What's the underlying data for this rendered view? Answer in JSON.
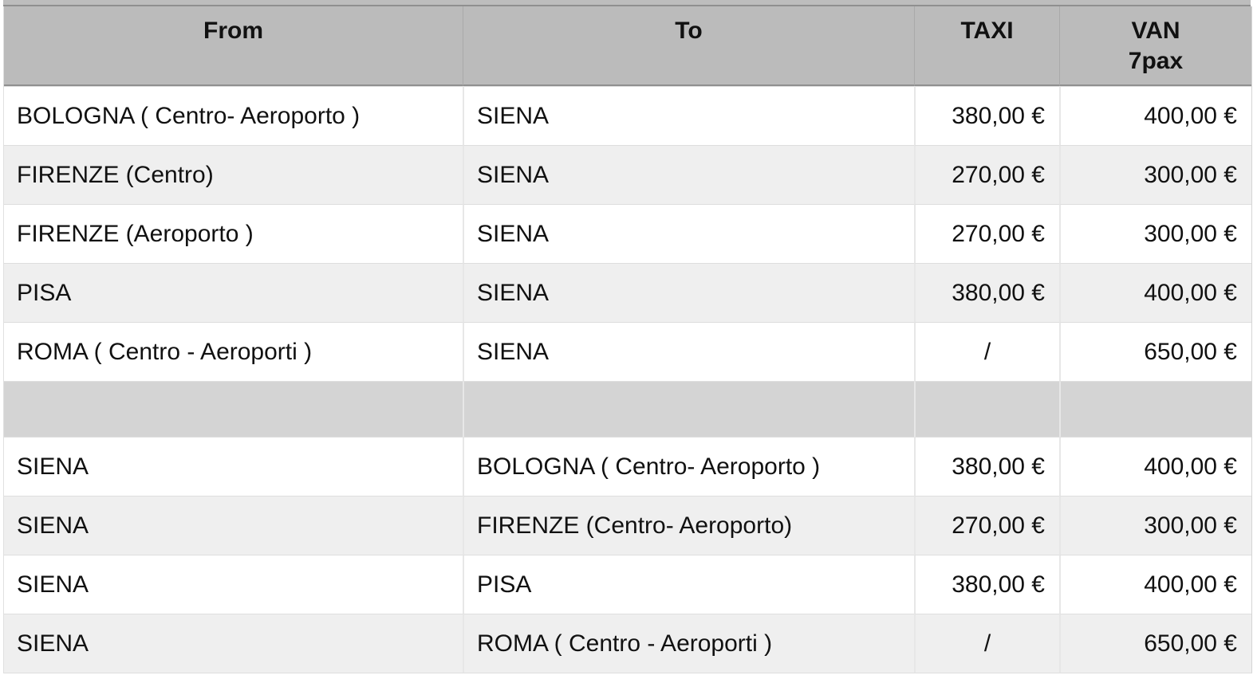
{
  "table": {
    "headers": {
      "from": "From",
      "to": "To",
      "taxi": "TAXI",
      "van": "VAN\n7pax"
    },
    "sections": [
      {
        "rows": [
          {
            "from": "BOLOGNA ( Centro- Aeroporto )",
            "to": "SIENA",
            "taxi": "380,00 €",
            "van": "400,00 €"
          },
          {
            "from": "FIRENZE (Centro)",
            "to": "SIENA",
            "taxi": "270,00 €",
            "van": "300,00 €"
          },
          {
            "from": "FIRENZE (Aeroporto )",
            "to": "SIENA",
            "taxi": "270,00 €",
            "van": "300,00 €"
          },
          {
            "from": "PISA",
            "to": "SIENA",
            "taxi": "380,00 €",
            "van": "400,00 €"
          },
          {
            "from": "ROMA ( Centro - Aeroporti )",
            "to": "SIENA",
            "taxi": "/",
            "van": "650,00 €"
          }
        ]
      },
      {
        "rows": [
          {
            "from": "SIENA",
            "to": "BOLOGNA ( Centro- Aeroporto )",
            "taxi": "380,00 €",
            "van": "400,00 €"
          },
          {
            "from": "SIENA",
            "to": "FIRENZE (Centro- Aeroporto)",
            "taxi": "270,00 €",
            "van": "300,00 €"
          },
          {
            "from": "SIENA",
            "to": "PISA",
            "taxi": "380,00 €",
            "van": "400,00 €"
          },
          {
            "from": "SIENA",
            "to": "ROMA ( Centro - Aeroporti )",
            "taxi": "/",
            "van": "650,00 €"
          }
        ]
      }
    ],
    "colors": {
      "header_bg": "#bbbbbb",
      "header_line": "#8f8f8f",
      "separator_bg": "#d4d4d4",
      "stripe_bg": "#efefef",
      "row_bg": "#ffffff",
      "grid_line": "#e7e7e7",
      "row_line": "#dedede",
      "text": "#111111"
    }
  }
}
